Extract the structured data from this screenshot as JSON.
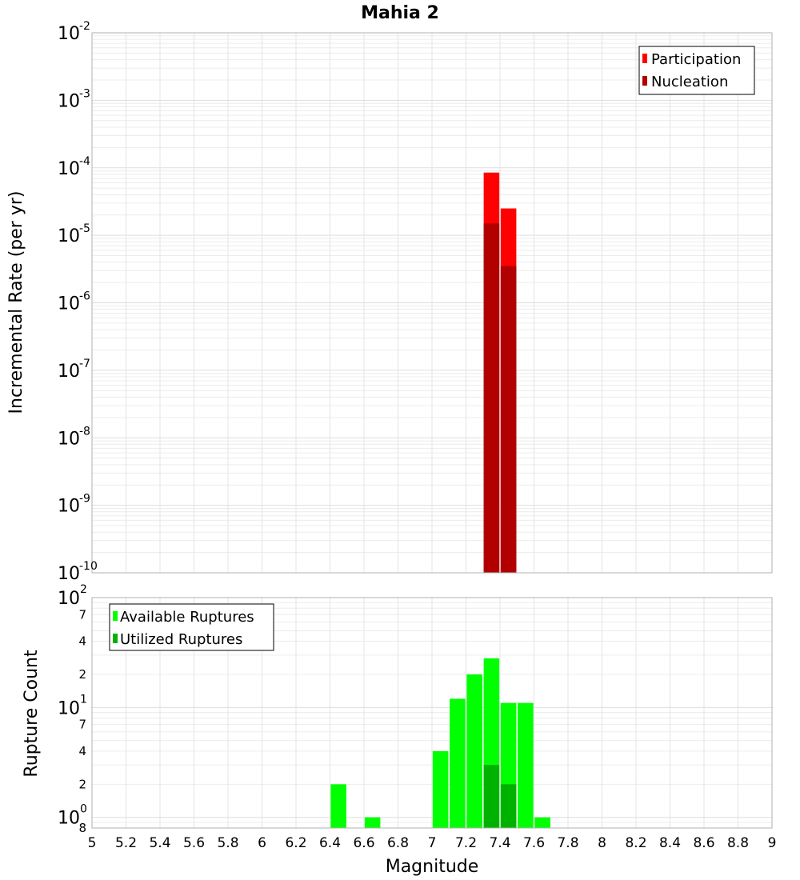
{
  "chart_data": [
    {
      "type": "bar",
      "title": "Mahia 2",
      "xlabel": "",
      "ylabel": "Incremental Rate (per yr)",
      "yscale": "log",
      "xlim": [
        5,
        9
      ],
      "ylim": [
        1e-10,
        0.01
      ],
      "grid": true,
      "legend_position": "top-right",
      "y_tick_labels": [
        {
          "base": "10",
          "exp": "-2"
        },
        {
          "base": "10",
          "exp": "-3"
        },
        {
          "base": "10",
          "exp": "-4"
        },
        {
          "base": "10",
          "exp": "-5"
        },
        {
          "base": "10",
          "exp": "-6"
        },
        {
          "base": "10",
          "exp": "-7"
        },
        {
          "base": "10",
          "exp": "-8"
        },
        {
          "base": "10",
          "exp": "-9"
        },
        {
          "base": "10",
          "exp": "-10"
        }
      ],
      "x": [
        7.35,
        7.45
      ],
      "series": [
        {
          "name": "Participation",
          "color": "#ff0000",
          "values": [
            8.5e-05,
            2.5e-05
          ]
        },
        {
          "name": "Nucleation",
          "color": "#b20000",
          "values": [
            1.5e-05,
            3.5e-06
          ]
        }
      ]
    },
    {
      "type": "bar",
      "title": "",
      "xlabel": "Magnitude",
      "ylabel": "Rupture Count",
      "yscale": "log",
      "xlim": [
        5,
        9
      ],
      "ylim": [
        0.8,
        100
      ],
      "grid": true,
      "legend_position": "top-left",
      "x_tick_labels": [
        "5",
        "5.2",
        "5.4",
        "5.6",
        "5.8",
        "6",
        "6.2",
        "6.4",
        "6.6",
        "6.8",
        "7",
        "7.2",
        "7.4",
        "7.6",
        "7.8",
        "8",
        "8.2",
        "8.4",
        "8.6",
        "8.8",
        "9"
      ],
      "y_tick_labels": {
        "major": [
          {
            "base": "10",
            "exp": "2"
          },
          {
            "base": "10",
            "exp": "1"
          },
          {
            "base": "10",
            "exp": "0"
          }
        ],
        "minor": [
          "7",
          "4",
          "2",
          "7",
          "4",
          "2",
          "8"
        ]
      },
      "x": [
        6.45,
        6.65,
        7.05,
        7.15,
        7.25,
        7.35,
        7.45,
        7.55,
        7.65
      ],
      "series": [
        {
          "name": "Available Ruptures",
          "color": "#00ff00",
          "values": [
            2,
            1,
            4,
            12,
            20,
            28,
            11,
            11,
            1
          ]
        },
        {
          "name": "Utilized Ruptures",
          "color": "#00b200",
          "values": [
            0,
            0,
            0,
            0,
            0,
            3,
            2,
            0,
            0
          ]
        }
      ]
    }
  ]
}
